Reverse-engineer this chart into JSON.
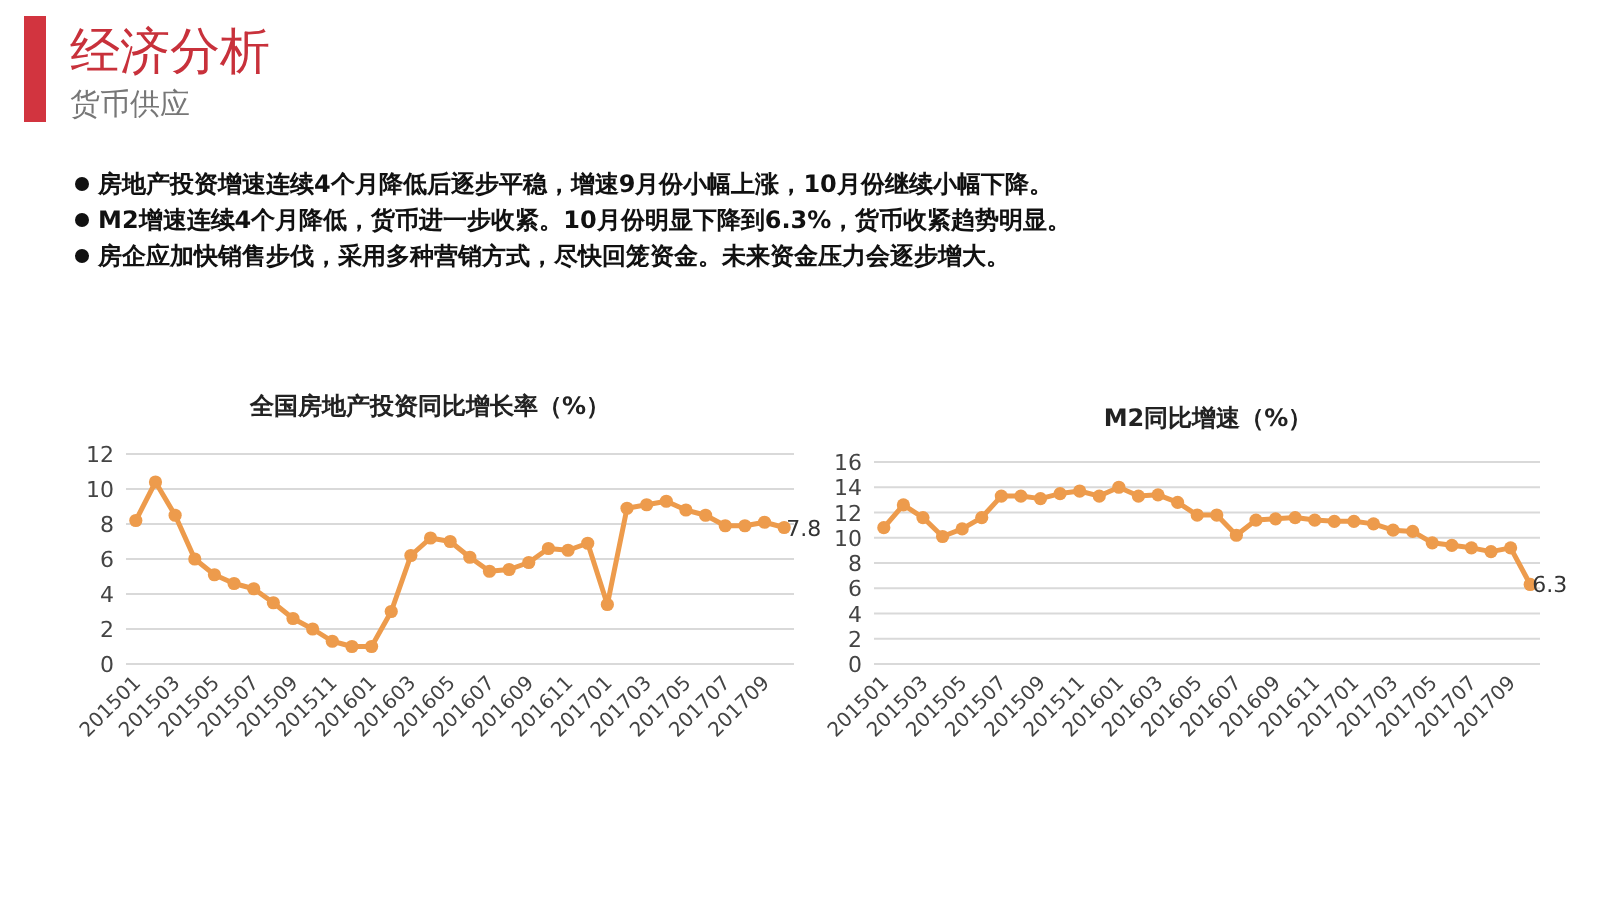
{
  "chart_data": [
    {
      "type": "other",
      "title": "经济分析",
      "subtitle": "货币供应",
      "annotations": [
        "房地产投资增速连续4个月降低后逐步平稳，增速9月份小幅上涨，10月份继续小幅下降。",
        "M2增速连续4个月降低，货币进一步收紧。10月份明显下降到6.3%，货币收紧趋势明显。",
        "房企应加快销售步伐，采用多种营销方式，尽快回笼资金。未来资金压力会逐步增大。"
      ]
    },
    {
      "type": "line",
      "title": "全国房地产投资同比增长率（%）",
      "categories": [
        "201501",
        null,
        "201503",
        null,
        "201505",
        null,
        "201507",
        null,
        "201509",
        null,
        "201511",
        null,
        "201601",
        null,
        "201603",
        null,
        "201605",
        null,
        "201607",
        null,
        "201609",
        null,
        "201611",
        null,
        "201701",
        null,
        "201703",
        null,
        "201705",
        null,
        "201707",
        null,
        "201709",
        null
      ],
      "ylim": [
        0,
        12
      ],
      "yticks": [
        0,
        2,
        4,
        6,
        8,
        10,
        12
      ],
      "grid": "y",
      "marker": "circle",
      "line_style": "solid",
      "series": [
        {
          "color": "#ed9b4c",
          "values": [
            8.2,
            10.4,
            8.5,
            6.0,
            5.1,
            4.6,
            4.3,
            3.5,
            2.6,
            2.0,
            1.3,
            1.0,
            1.0,
            3.0,
            6.2,
            7.2,
            7.0,
            6.1,
            5.3,
            5.4,
            5.8,
            6.6,
            6.5,
            6.9,
            3.4,
            8.9,
            9.1,
            9.3,
            8.8,
            8.5,
            7.9,
            7.9,
            8.1,
            7.8
          ],
          "value_labels": [
            null,
            null,
            null,
            null,
            null,
            null,
            null,
            null,
            null,
            null,
            null,
            null,
            null,
            null,
            null,
            null,
            null,
            null,
            null,
            null,
            null,
            null,
            null,
            null,
            null,
            null,
            null,
            null,
            null,
            null,
            null,
            null,
            null,
            "7.8"
          ]
        }
      ]
    },
    {
      "type": "line",
      "title": "M2同比增速（%）",
      "categories": [
        "201501",
        null,
        "201503",
        null,
        "201505",
        null,
        "201507",
        null,
        "201509",
        null,
        "201511",
        null,
        "201601",
        null,
        "201603",
        null,
        "201605",
        null,
        "201607",
        null,
        "201609",
        null,
        "201611",
        null,
        "201701",
        null,
        "201703",
        null,
        "201705",
        null,
        "201707",
        null,
        "201709",
        null
      ],
      "ylim": [
        0,
        16
      ],
      "yticks": [
        0,
        2,
        4,
        6,
        8,
        10,
        12,
        14,
        16
      ],
      "grid": "y",
      "marker": "circle",
      "line_style": "solid",
      "series": [
        {
          "color": "#ed9b4c",
          "values": [
            10.8,
            12.6,
            11.6,
            10.1,
            10.7,
            11.6,
            13.3,
            13.3,
            13.1,
            13.5,
            13.7,
            13.3,
            14.0,
            13.3,
            13.4,
            12.8,
            11.8,
            11.8,
            10.2,
            11.4,
            11.5,
            11.6,
            11.4,
            11.3,
            11.3,
            11.1,
            10.6,
            10.5,
            9.6,
            9.4,
            9.2,
            8.9,
            9.2,
            6.3
          ],
          "value_labels": [
            null,
            null,
            null,
            null,
            null,
            null,
            null,
            null,
            null,
            null,
            null,
            null,
            null,
            null,
            null,
            null,
            null,
            null,
            null,
            null,
            null,
            null,
            null,
            null,
            null,
            null,
            null,
            null,
            null,
            null,
            null,
            null,
            null,
            "6.3"
          ]
        }
      ]
    }
  ]
}
